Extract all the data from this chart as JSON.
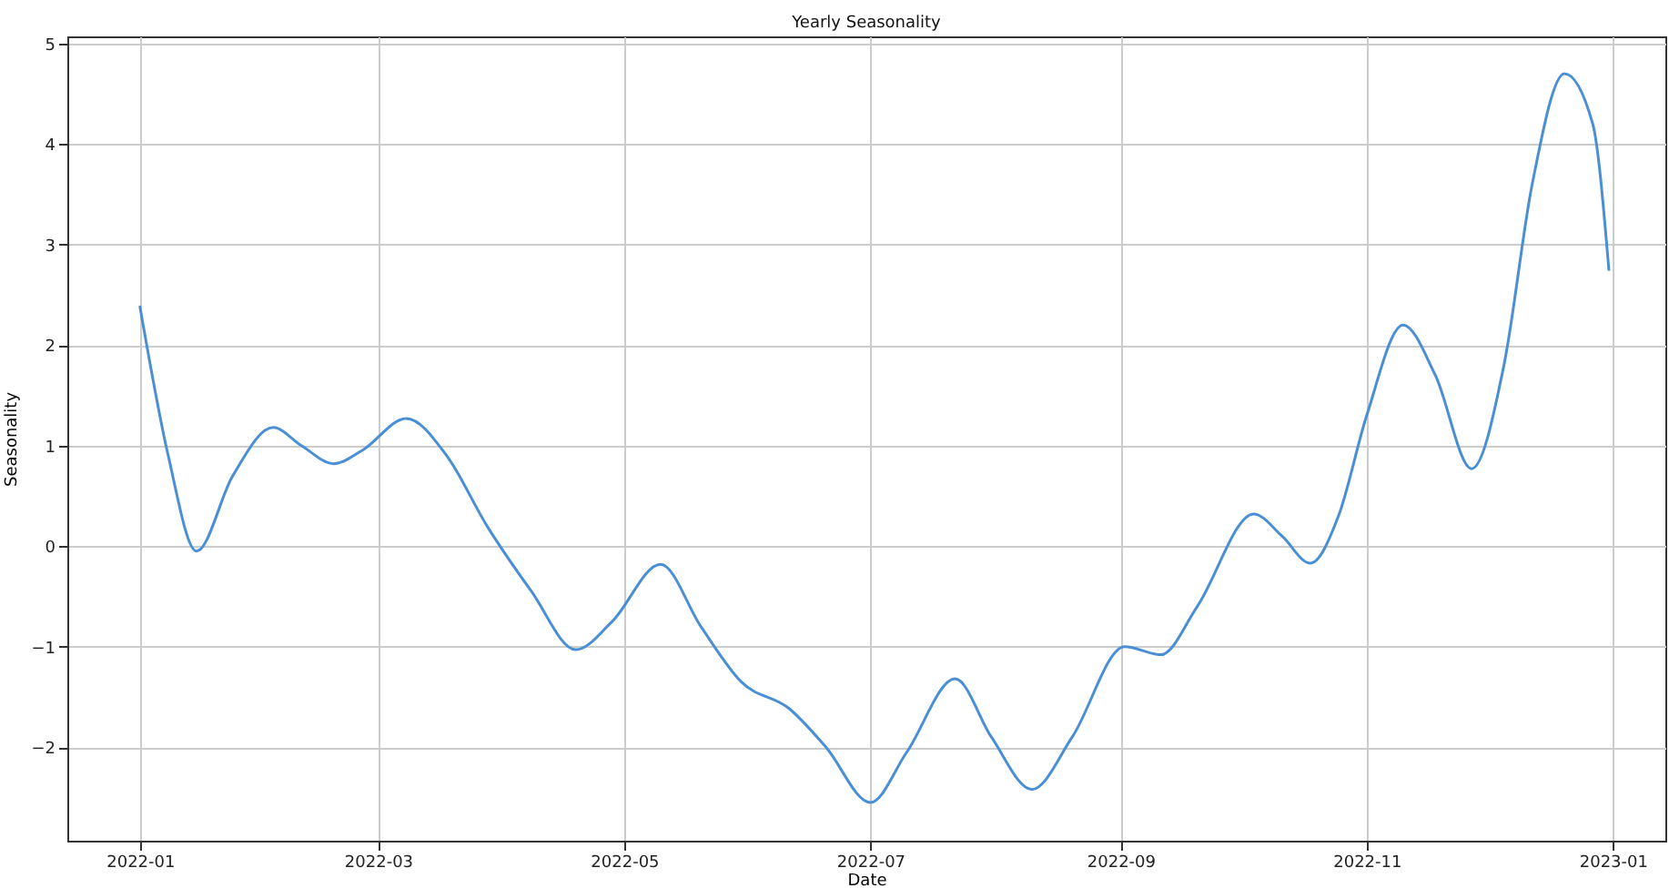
{
  "chart_data": {
    "type": "line",
    "title": "Yearly Seasonality",
    "xlabel": "Date",
    "ylabel": "Seasonality",
    "x": [
      "2022-01-01",
      "2022-01-08",
      "2022-01-15",
      "2022-01-24",
      "2022-02-03",
      "2022-02-10",
      "2022-02-18",
      "2022-02-25",
      "2022-03-08",
      "2022-03-18",
      "2022-03-28",
      "2022-04-08",
      "2022-04-19",
      "2022-04-28",
      "2022-05-10",
      "2022-05-20",
      "2022-05-30",
      "2022-06-11",
      "2022-06-20",
      "2022-07-01",
      "2022-07-10",
      "2022-07-22",
      "2022-07-31",
      "2022-08-10",
      "2022-08-20",
      "2022-09-02",
      "2022-09-11",
      "2022-09-20",
      "2022-10-04",
      "2022-10-11",
      "2022-10-18",
      "2022-10-25",
      "2022-11-01",
      "2022-11-10",
      "2022-11-18",
      "2022-11-27",
      "2022-12-05",
      "2022-12-12",
      "2022-12-20",
      "2022-12-27",
      "2022-12-31"
    ],
    "series": [
      {
        "color": "#4a8fd6",
        "values": [
          2.38,
          0.9,
          -0.05,
          0.7,
          1.18,
          1.0,
          0.82,
          0.95,
          1.27,
          0.9,
          0.2,
          -0.45,
          -1.03,
          -0.75,
          -0.18,
          -0.8,
          -1.35,
          -1.62,
          -2.0,
          -2.55,
          -2.05,
          -1.32,
          -1.9,
          -2.42,
          -1.9,
          -1.0,
          -1.08,
          -0.6,
          0.32,
          0.1,
          -0.17,
          0.3,
          1.3,
          2.2,
          1.7,
          0.77,
          1.8,
          3.6,
          4.7,
          4.2,
          2.75
        ]
      }
    ],
    "xlim": [
      "2021-12-14",
      "2023-01-14"
    ],
    "xticks": [
      "2022-01",
      "2022-03",
      "2022-05",
      "2022-07",
      "2022-09",
      "2022-11",
      "2023-01"
    ],
    "ylim": [
      -2.93,
      5.07
    ],
    "yticks": [
      -2,
      -1,
      0,
      1,
      2,
      3,
      4,
      5
    ],
    "grid": true,
    "marker": "none",
    "line_style": "solid"
  }
}
